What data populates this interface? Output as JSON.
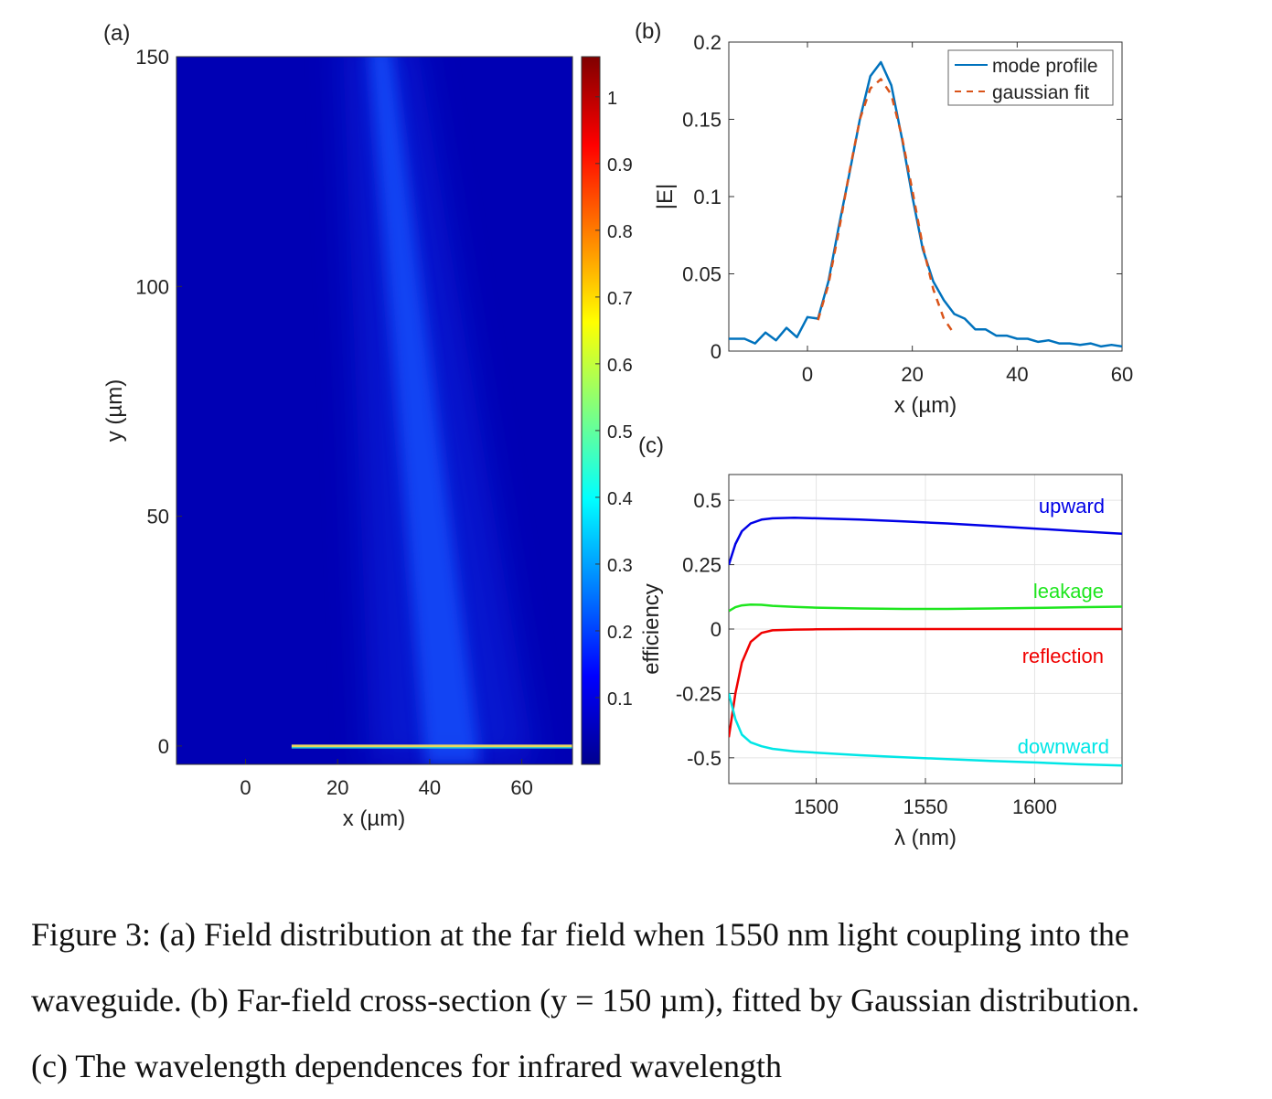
{
  "panel_labels": [
    "(a)",
    "(b)",
    "(c)"
  ],
  "caption_lines": [
    "Figure 3:  (a) Field distribution at the far field when 1550 nm light coupling into the",
    "waveguide.  (b) Far-field cross-section (y = 150 µm), fitted by Gaussian distribution.",
    "(c) The wavelength dependences for infrared wavelength"
  ],
  "chart_data": [
    {
      "id": "a",
      "type": "heatmap",
      "xlabel": "x (µm)",
      "ylabel": "y (µm)",
      "xlim": [
        -15,
        71
      ],
      "ylim": [
        -4,
        150
      ],
      "xticks": [
        0,
        20,
        40,
        60
      ],
      "yticks": [
        0,
        50,
        100,
        150
      ],
      "colorbar": {
        "range": [
          0,
          1.06
        ],
        "ticks": [
          0.1,
          0.2,
          0.3,
          0.4,
          0.5,
          0.6,
          0.7,
          0.8,
          0.9,
          1
        ],
        "colormap": "jet"
      },
      "beam": {
        "start": [
          45,
          0
        ],
        "end": [
          29,
          150
        ],
        "peak_value": 0.2
      },
      "waveguide": {
        "x_range": [
          10,
          71
        ],
        "y": 0
      }
    },
    {
      "id": "b",
      "type": "line",
      "xlabel": "x (µm)",
      "ylabel": "|E|",
      "xlim": [
        -15,
        60
      ],
      "ylim": [
        0,
        0.2
      ],
      "xticks": [
        0,
        20,
        40,
        60
      ],
      "yticks": [
        0,
        0.05,
        0.1,
        0.15,
        0.2
      ],
      "legend_position": "top-right",
      "series": [
        {
          "name": "mode profile",
          "color": "#0072BD",
          "style": "solid",
          "x": [
            -15,
            -12,
            -10,
            -8,
            -6,
            -4,
            -2,
            0,
            2,
            4,
            6,
            8,
            10,
            12,
            14,
            16,
            18,
            20,
            22,
            24,
            26,
            28,
            30,
            32,
            34,
            36,
            38,
            40,
            42,
            44,
            46,
            48,
            50,
            52,
            54,
            56,
            58,
            60
          ],
          "y": [
            0.008,
            0.008,
            0.005,
            0.012,
            0.007,
            0.015,
            0.009,
            0.022,
            0.021,
            0.045,
            0.081,
            0.115,
            0.15,
            0.178,
            0.187,
            0.172,
            0.138,
            0.1,
            0.066,
            0.045,
            0.033,
            0.024,
            0.021,
            0.014,
            0.014,
            0.01,
            0.01,
            0.008,
            0.008,
            0.006,
            0.007,
            0.005,
            0.005,
            0.004,
            0.005,
            0.003,
            0.004,
            0.003
          ]
        },
        {
          "name": "gaussian fit",
          "color": "#D95319",
          "style": "dashed",
          "x": [
            2,
            4,
            6,
            8,
            10,
            12,
            14,
            16,
            18,
            20,
            22,
            24,
            26,
            28
          ],
          "y": [
            0.02,
            0.043,
            0.078,
            0.116,
            0.15,
            0.17,
            0.176,
            0.166,
            0.139,
            0.104,
            0.068,
            0.04,
            0.021,
            0.011
          ]
        }
      ]
    },
    {
      "id": "c",
      "type": "line",
      "xlabel": "λ (nm)",
      "ylabel": "efficiency",
      "xlim": [
        1460,
        1640
      ],
      "ylim": [
        -0.6,
        0.6
      ],
      "xticks": [
        1500,
        1550,
        1600
      ],
      "yticks": [
        -0.5,
        -0.25,
        0,
        0.25,
        0.5
      ],
      "grid": true,
      "series": [
        {
          "name": "upward",
          "color": "#0000E6",
          "x": [
            1460,
            1463,
            1466,
            1470,
            1475,
            1480,
            1490,
            1500,
            1520,
            1540,
            1560,
            1580,
            1600,
            1620,
            1640
          ],
          "y": [
            0.25,
            0.33,
            0.38,
            0.41,
            0.425,
            0.43,
            0.432,
            0.43,
            0.425,
            0.418,
            0.41,
            0.4,
            0.39,
            0.38,
            0.37
          ]
        },
        {
          "name": "leakage",
          "color": "#1EE61E",
          "x": [
            1460,
            1463,
            1466,
            1470,
            1475,
            1480,
            1490,
            1500,
            1520,
            1540,
            1560,
            1580,
            1600,
            1620,
            1640
          ],
          "y": [
            0.07,
            0.085,
            0.092,
            0.095,
            0.094,
            0.09,
            0.086,
            0.083,
            0.08,
            0.078,
            0.078,
            0.08,
            0.082,
            0.085,
            0.087
          ]
        },
        {
          "name": "reflection",
          "color": "#F00000",
          "x": [
            1460,
            1463,
            1466,
            1470,
            1475,
            1480,
            1490,
            1500,
            1520,
            1540,
            1560,
            1580,
            1600,
            1620,
            1640
          ],
          "y": [
            -0.42,
            -0.25,
            -0.13,
            -0.05,
            -0.015,
            -0.005,
            -0.002,
            -0.001,
            0,
            0,
            0,
            0,
            0,
            0,
            0
          ]
        },
        {
          "name": "downward",
          "color": "#00E6E6",
          "x": [
            1460,
            1463,
            1466,
            1470,
            1475,
            1480,
            1490,
            1500,
            1520,
            1540,
            1560,
            1580,
            1600,
            1620,
            1640
          ],
          "y": [
            -0.25,
            -0.35,
            -0.41,
            -0.44,
            -0.455,
            -0.465,
            -0.475,
            -0.48,
            -0.49,
            -0.498,
            -0.505,
            -0.512,
            -0.518,
            -0.525,
            -0.53
          ]
        }
      ]
    }
  ]
}
